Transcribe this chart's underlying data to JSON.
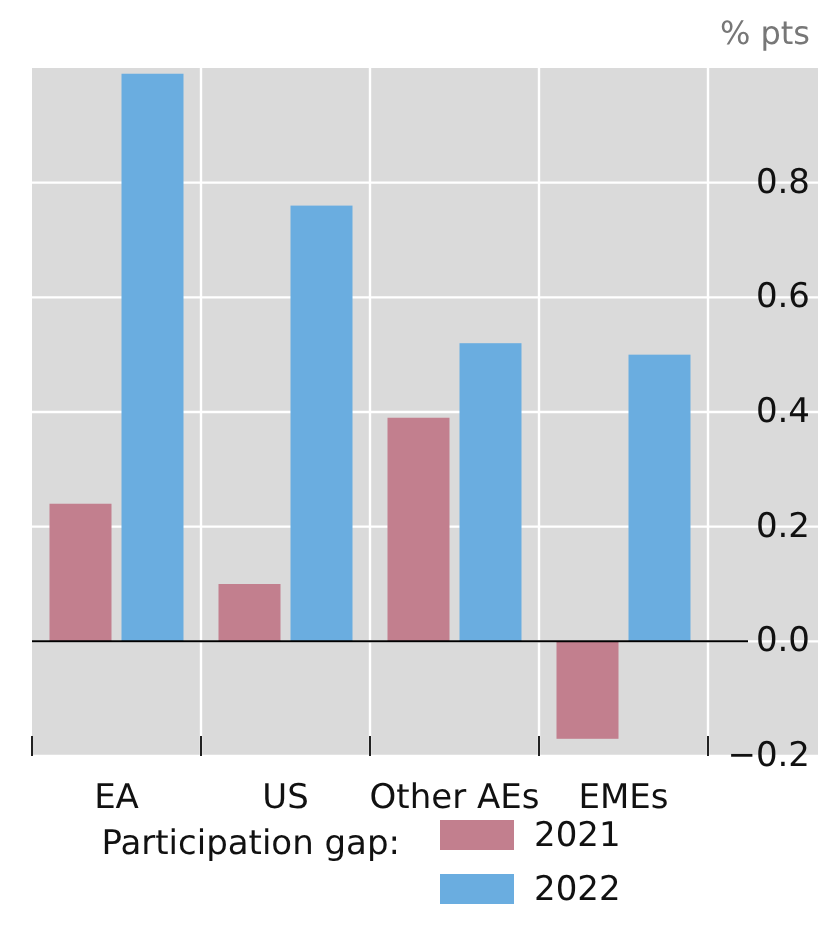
{
  "chart_data": {
    "type": "bar",
    "ylabel": "% pts",
    "legend_title": "Participation gap:",
    "categories": [
      "EA",
      "US",
      "Other AEs",
      "EMEs"
    ],
    "series": [
      {
        "name": "2021",
        "color": "#c27f8e",
        "values": [
          0.24,
          0.1,
          0.39,
          -0.17
        ]
      },
      {
        "name": "2022",
        "color": "#6aade0",
        "values": [
          0.99,
          0.76,
          0.52,
          0.5
        ]
      }
    ],
    "ylim": [
      -0.2,
      1.0
    ],
    "yticks": [
      {
        "value": -0.2,
        "label": "−0.2"
      },
      "0.0",
      0.2,
      0.4,
      0.6,
      0.8
    ],
    "grid": true,
    "legend": "bottom"
  }
}
